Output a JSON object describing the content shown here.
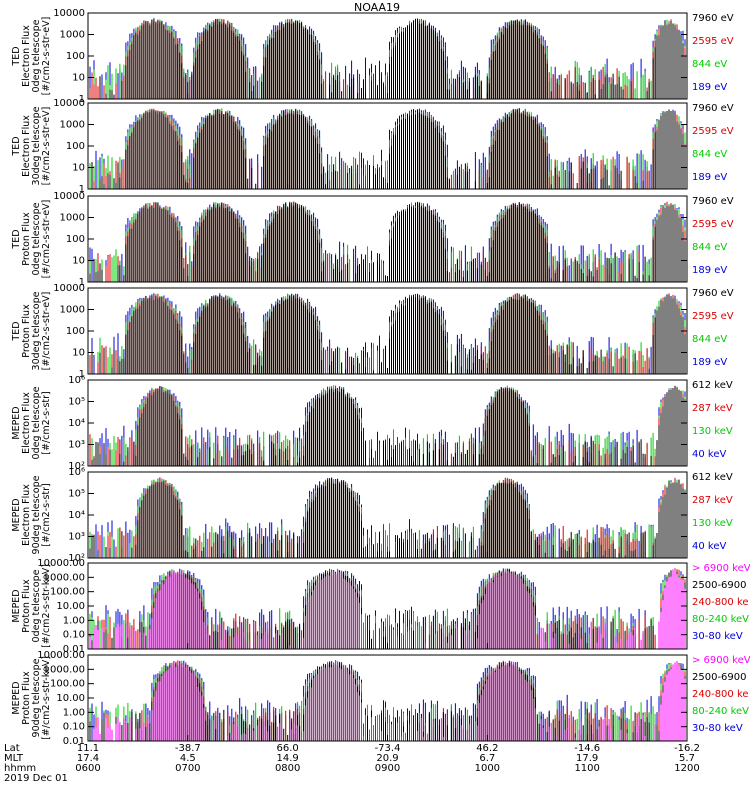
{
  "chart_data": {
    "type": "line",
    "title": "NOAA19",
    "x_range_hhmm": [
      "0600",
      "1200"
    ],
    "x_ticks": [
      {
        "lat": "11.1",
        "mlt": "17.4",
        "hhmm": "0600"
      },
      {
        "lat": "-38.7",
        "mlt": "4.5",
        "hhmm": "0700"
      },
      {
        "lat": "66.0",
        "mlt": "14.9",
        "hhmm": "0800"
      },
      {
        "lat": "-73.4",
        "mlt": "20.9",
        "hhmm": "0900"
      },
      {
        "lat": "46.2",
        "mlt": "6.7",
        "hhmm": "1000"
      },
      {
        "lat": "-14.6",
        "mlt": "17.9",
        "hhmm": "1100"
      },
      {
        "lat": "-16.2",
        "mlt": "5.7",
        "hhmm": "1200"
      }
    ],
    "row_labels": {
      "lat": "Lat",
      "mlt": "MLT",
      "hhmm": "hhmm",
      "date": "2019 Dec 01"
    },
    "panels": [
      {
        "id": "ted-e0",
        "ylabel": [
          "TED",
          "Electron Flux",
          "0deg telescope",
          "[#/cm2-s-str-eV]"
        ],
        "yscale": "log",
        "ylim": [
          1,
          10000
        ],
        "ytick_labels": [
          "1",
          "10",
          "100",
          "1000",
          "10000"
        ],
        "series": [
          {
            "name": "7960 eV",
            "color": "#000000"
          },
          {
            "name": "2595 eV",
            "color": "#dd0000"
          },
          {
            "name": "844 eV",
            "color": "#00cc00"
          },
          {
            "name": "189 eV",
            "color": "#0000dd"
          }
        ]
      },
      {
        "id": "ted-e30",
        "ylabel": [
          "TED",
          "Electron Flux",
          "30deg telescope",
          "[#/cm2-s-str-eV]"
        ],
        "yscale": "log",
        "ylim": [
          1,
          10000
        ],
        "ytick_labels": [
          "1",
          "10",
          "100",
          "1000",
          "10000"
        ],
        "series": [
          {
            "name": "7960 eV",
            "color": "#000000"
          },
          {
            "name": "2595 eV",
            "color": "#dd0000"
          },
          {
            "name": "844 eV",
            "color": "#00cc00"
          },
          {
            "name": "189 eV",
            "color": "#0000dd"
          }
        ]
      },
      {
        "id": "ted-p0",
        "ylabel": [
          "TED",
          "Proton Flux",
          "0deg telescope",
          "[#/cm2-s-str-eV]"
        ],
        "yscale": "log",
        "ylim": [
          1,
          10000
        ],
        "ytick_labels": [
          "1",
          "10",
          "100",
          "1000",
          "10000"
        ],
        "series": [
          {
            "name": "7960 eV",
            "color": "#000000"
          },
          {
            "name": "2595 eV",
            "color": "#dd0000"
          },
          {
            "name": "844 eV",
            "color": "#00cc00"
          },
          {
            "name": "189 eV",
            "color": "#0000dd"
          }
        ]
      },
      {
        "id": "ted-p30",
        "ylabel": [
          "TED",
          "Proton Flux",
          "30deg telescope",
          "[#/cm2-s-str-eV]"
        ],
        "yscale": "log",
        "ylim": [
          1,
          10000
        ],
        "ytick_labels": [
          "1",
          "10",
          "100",
          "1000",
          "10000"
        ],
        "series": [
          {
            "name": "7960 eV",
            "color": "#000000"
          },
          {
            "name": "2595 eV",
            "color": "#dd0000"
          },
          {
            "name": "844 eV",
            "color": "#00cc00"
          },
          {
            "name": "189 eV",
            "color": "#0000dd"
          }
        ]
      },
      {
        "id": "meped-e0",
        "ylabel": [
          "MEPED",
          "Electron Flux",
          "0deg telescope",
          "[#/cm2-s-str]"
        ],
        "yscale": "log",
        "ylim": [
          100,
          1000000
        ],
        "ytick_labels": [
          "10²",
          "10³",
          "10⁴",
          "10⁵",
          "10⁶"
        ],
        "series": [
          {
            "name": "612 keV",
            "color": "#000000"
          },
          {
            "name": "287 keV",
            "color": "#dd0000"
          },
          {
            "name": "130 keV",
            "color": "#00cc00"
          },
          {
            "name": "40 keV",
            "color": "#0000dd"
          }
        ]
      },
      {
        "id": "meped-e90",
        "ylabel": [
          "MEPED",
          "Electron Flux",
          "90deg telescope",
          "[#/cm2-s-str]"
        ],
        "yscale": "log",
        "ylim": [
          100,
          1000000
        ],
        "ytick_labels": [
          "10²",
          "10³",
          "10⁴",
          "10⁵",
          "10⁶"
        ],
        "series": [
          {
            "name": "612 keV",
            "color": "#000000"
          },
          {
            "name": "287 keV",
            "color": "#dd0000"
          },
          {
            "name": "130 keV",
            "color": "#00cc00"
          },
          {
            "name": "40 keV",
            "color": "#0000dd"
          }
        ]
      },
      {
        "id": "meped-p0",
        "ylabel": [
          "MEPED",
          "Proton Flux",
          "0deg telescope",
          "[#/cm2-s-str-keV]"
        ],
        "yscale": "log",
        "ylim": [
          0.01,
          10000
        ],
        "ytick_labels": [
          "0.01",
          "0.10",
          "1.00",
          "10.00",
          "100.00",
          "1000.00",
          "10000.00"
        ],
        "series": [
          {
            "name": "> 6900 keV",
            "color": "#ff00ff"
          },
          {
            "name": "2500-6900",
            "color": "#000000"
          },
          {
            "name": "240-800 ke",
            "color": "#dd0000"
          },
          {
            "name": "80-240 keV",
            "color": "#00cc00"
          },
          {
            "name": "30-80 keV",
            "color": "#0000dd"
          }
        ]
      },
      {
        "id": "meped-p90",
        "ylabel": [
          "MEPED",
          "Proton Flux",
          "90deg telescope",
          "[#/cm2-s-str-keV]"
        ],
        "yscale": "log",
        "ylim": [
          0.01,
          10000
        ],
        "ytick_labels": [
          "0.01",
          "0.10",
          "1.00",
          "10.00",
          "100.00",
          "1000.00",
          "10000.00"
        ],
        "series": [
          {
            "name": "> 6900 keV",
            "color": "#ff00ff"
          },
          {
            "name": "2500-6900",
            "color": "#000000"
          },
          {
            "name": "240-800 ke",
            "color": "#dd0000"
          },
          {
            "name": "80-240 keV",
            "color": "#00cc00"
          },
          {
            "name": "30-80 keV",
            "color": "#0000dd"
          }
        ]
      }
    ]
  }
}
